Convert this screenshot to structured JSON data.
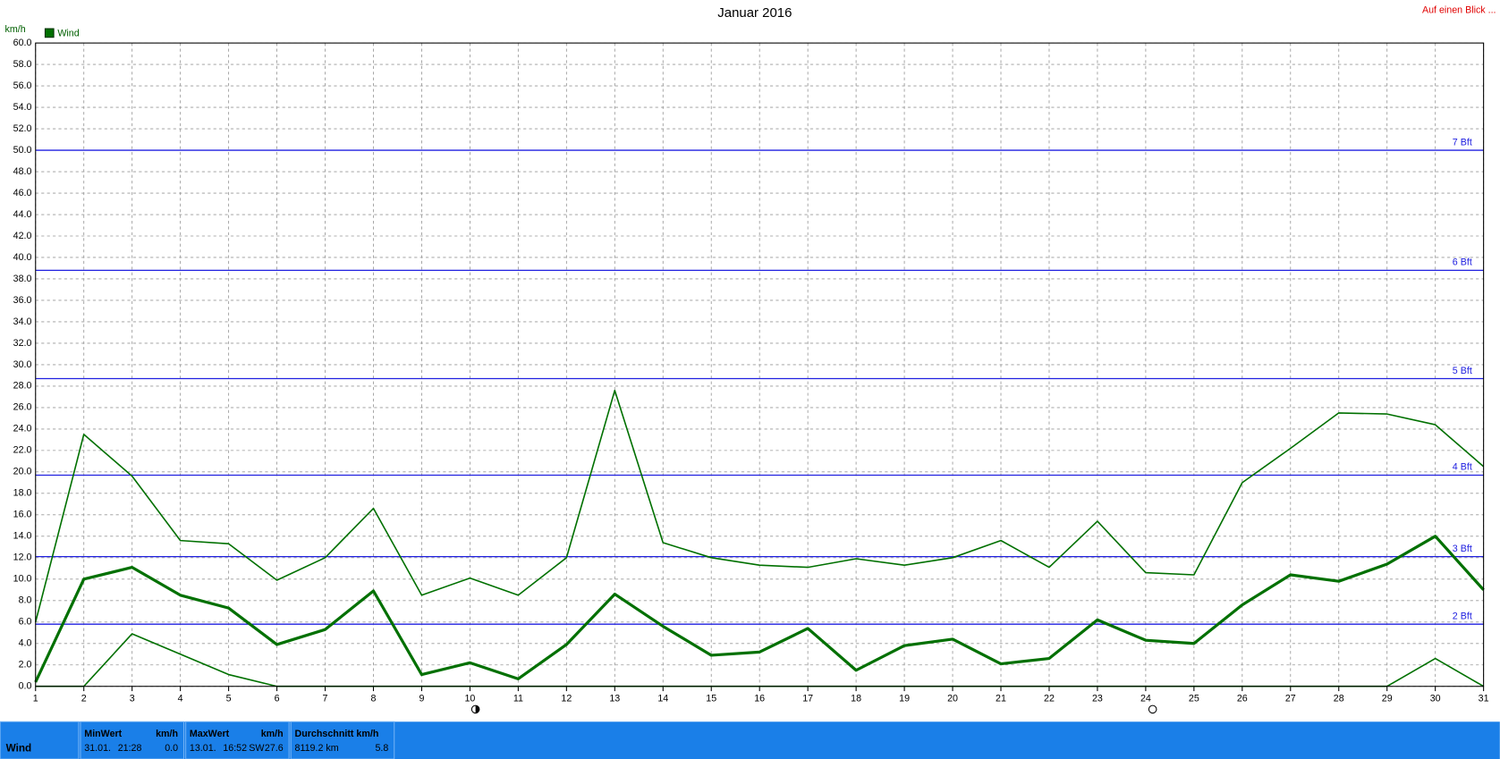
{
  "chart_data": {
    "type": "line",
    "title": "Januar 2016",
    "corner_note": "Auf einen Blick ...",
    "y_unit": "km/h",
    "legend": "Wind",
    "x": [
      1,
      2,
      3,
      4,
      5,
      6,
      7,
      8,
      9,
      10,
      11,
      12,
      13,
      14,
      15,
      16,
      17,
      18,
      19,
      20,
      21,
      22,
      23,
      24,
      25,
      26,
      27,
      28,
      29,
      30,
      31
    ],
    "xlim": [
      1,
      31
    ],
    "xticks": [
      1,
      2,
      3,
      4,
      5,
      6,
      7,
      8,
      9,
      10,
      11,
      12,
      13,
      14,
      15,
      16,
      17,
      18,
      19,
      20,
      21,
      22,
      23,
      24,
      25,
      26,
      27,
      28,
      29,
      30,
      31
    ],
    "ylim": [
      0,
      60
    ],
    "yticks": [
      {
        "value": 0,
        "label": "0.0"
      },
      {
        "value": 2,
        "label": "2.0"
      },
      {
        "value": 4,
        "label": "4.0"
      },
      {
        "value": 6,
        "label": "6.0"
      },
      {
        "value": 8,
        "label": "8.0"
      },
      {
        "value": 10,
        "label": "10.0"
      },
      {
        "value": 12,
        "label": "12.0"
      },
      {
        "value": 14,
        "label": "14.0"
      },
      {
        "value": 16,
        "label": "16.0"
      },
      {
        "value": 18,
        "label": "18.0"
      },
      {
        "value": 20,
        "label": "20.0"
      },
      {
        "value": 22,
        "label": "22.0"
      },
      {
        "value": 24,
        "label": "24.0"
      },
      {
        "value": 26,
        "label": "26.0"
      },
      {
        "value": 28,
        "label": "28.0"
      },
      {
        "value": 30,
        "label": "30.0"
      },
      {
        "value": 32,
        "label": "32.0"
      },
      {
        "value": 34,
        "label": "34.0"
      },
      {
        "value": 36,
        "label": "36.0"
      },
      {
        "value": 38,
        "label": "38.0"
      },
      {
        "value": 40,
        "label": "40.0"
      },
      {
        "value": 42,
        "label": "42.0"
      },
      {
        "value": 44,
        "label": "44.0"
      },
      {
        "value": 46,
        "label": "46.0"
      },
      {
        "value": 48,
        "label": "48.0"
      },
      {
        "value": 50,
        "label": "50.0"
      },
      {
        "value": 52,
        "label": "52.0"
      },
      {
        "value": 54,
        "label": "54.0"
      },
      {
        "value": 56,
        "label": "56.0"
      },
      {
        "value": 58,
        "label": "58.0"
      },
      {
        "value": 60,
        "label": "60.0"
      }
    ],
    "grid": true,
    "series": [
      {
        "color": "#007000",
        "line_width": 1.5,
        "values": [
          6.0,
          23.5,
          19.6,
          13.6,
          13.3,
          9.9,
          12.0,
          16.6,
          8.5,
          10.1,
          8.5,
          12.0,
          27.6,
          13.4,
          12.0,
          11.3,
          11.1,
          11.9,
          11.3,
          12.0,
          13.6,
          11.1,
          15.4,
          10.6,
          10.4,
          19.0,
          22.2,
          25.5,
          25.4,
          24.4,
          20.5
        ]
      },
      {
        "color": "#007000",
        "line_width": 3,
        "values": [
          0.4,
          10.0,
          11.1,
          8.5,
          7.3,
          3.9,
          5.3,
          8.9,
          1.1,
          2.2,
          0.7,
          3.9,
          8.6,
          5.6,
          2.9,
          3.2,
          5.4,
          1.5,
          3.8,
          4.4,
          2.1,
          2.6,
          6.2,
          4.3,
          4.0,
          7.6,
          10.4,
          9.8,
          11.4,
          14.0,
          9.0
        ]
      },
      {
        "color": "#007000",
        "line_width": 1.5,
        "values": [
          0,
          0,
          4.9,
          3.0,
          1.1,
          0,
          0,
          0,
          0,
          0,
          0,
          0,
          0,
          0,
          0,
          0,
          0,
          0,
          0,
          0,
          0,
          0,
          0,
          0,
          0,
          0,
          0,
          0,
          0,
          2.6,
          0
        ]
      }
    ],
    "reference_lines": [
      {
        "value": 5.8,
        "label": "2 Bft"
      },
      {
        "value": 12.1,
        "label": "3 Bft"
      },
      {
        "value": 19.7,
        "label": "4 Bft"
      },
      {
        "value": 28.7,
        "label": "5 Bft"
      },
      {
        "value": 38.8,
        "label": "6 Bft"
      },
      {
        "value": 50.0,
        "label": "7 Bft"
      }
    ],
    "reference_color": "#2020e0"
  },
  "summary": {
    "row_label": "Wind",
    "columns": [
      {
        "header": "MinWert",
        "unit": "km/h",
        "cells": [
          "31.01.",
          "21:28",
          "0.0"
        ]
      },
      {
        "header": "MaxWert",
        "unit": "km/h",
        "cells": [
          "13.01.",
          "16:52",
          "SW",
          "27.6"
        ]
      },
      {
        "header": "Durchschnitt km/h",
        "cells": [
          "8119.2 km",
          "5.8"
        ]
      }
    ]
  }
}
